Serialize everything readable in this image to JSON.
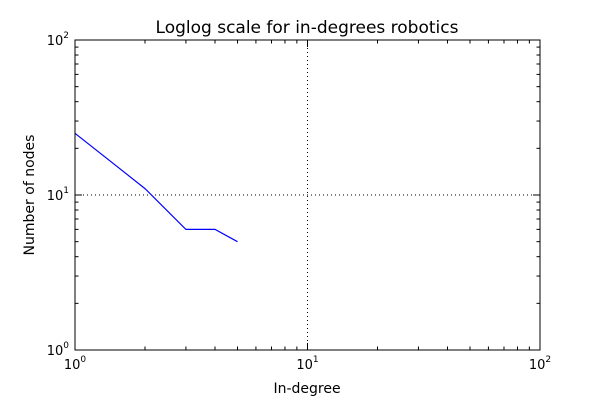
{
  "chart_data": {
    "type": "line",
    "title": "Loglog scale for in-degrees robotics",
    "xlabel": "In-degree",
    "ylabel": "Number of nodes",
    "xscale": "log",
    "yscale": "log",
    "xlim": [
      1,
      100
    ],
    "ylim": [
      1,
      100
    ],
    "x_ticks": [
      {
        "value": 1,
        "base": "10",
        "exp": "0"
      },
      {
        "value": 10,
        "base": "10",
        "exp": "1"
      },
      {
        "value": 100,
        "base": "10",
        "exp": "2"
      }
    ],
    "y_ticks": [
      {
        "value": 1,
        "base": "10",
        "exp": "0"
      },
      {
        "value": 10,
        "base": "10",
        "exp": "1"
      },
      {
        "value": 100,
        "base": "10",
        "exp": "2"
      }
    ],
    "grid": true,
    "series": [
      {
        "color": "#0000ff",
        "x": [
          1,
          2,
          3,
          4,
          5
        ],
        "y": [
          25,
          11,
          6,
          6,
          5
        ]
      }
    ]
  }
}
